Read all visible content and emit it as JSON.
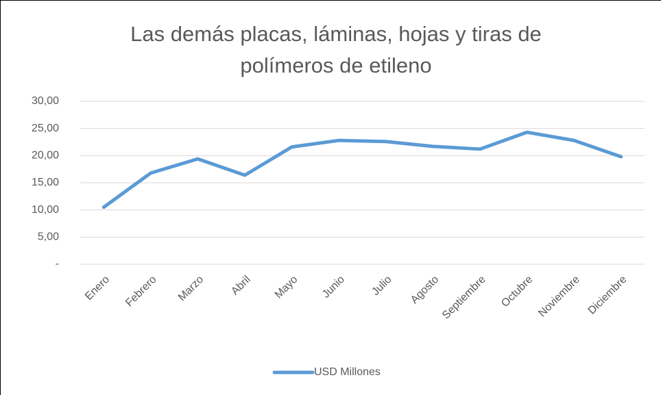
{
  "chart_data": {
    "type": "line",
    "title": [
      "Las demás placas, láminas, hojas y tiras de",
      "polímeros de etileno"
    ],
    "categories": [
      "Enero",
      "Febrero",
      "Marzo",
      "Abril",
      "Mayo",
      "Junio",
      "Julio",
      "Agosto",
      "Septiembre",
      "Octubre",
      "Noviembre",
      "Diciembre"
    ],
    "series": [
      {
        "name": "USD Millones",
        "color": "#5b9bd5",
        "values": [
          10.5,
          16.8,
          19.4,
          16.4,
          21.6,
          22.8,
          22.6,
          21.7,
          21.2,
          24.3,
          22.8,
          19.8
        ]
      }
    ],
    "ylim": [
      0,
      30
    ],
    "yticks": [
      {
        "value": 0,
        "label": "-"
      },
      {
        "value": 5,
        "label": "5,00"
      },
      {
        "value": 10,
        "label": "10,00"
      },
      {
        "value": 15,
        "label": "15,00"
      },
      {
        "value": 20,
        "label": "20,00"
      },
      {
        "value": 25,
        "label": "25,00"
      },
      {
        "value": 30,
        "label": "30,00"
      }
    ],
    "grid": true,
    "legend": "bottom"
  }
}
